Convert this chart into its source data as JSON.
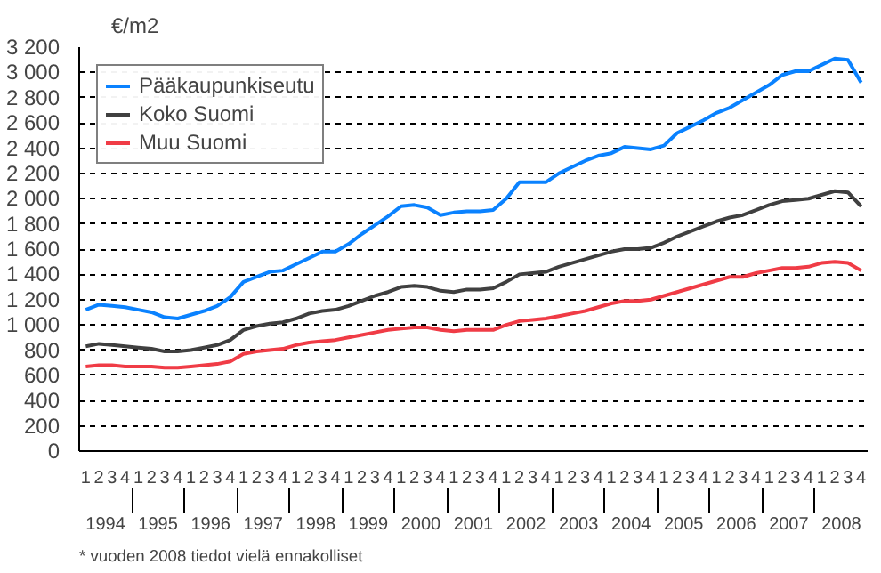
{
  "chart_data": {
    "type": "line",
    "ylabel": "€/m2",
    "categories": [
      "1",
      "2",
      "3",
      "4",
      "1",
      "2",
      "3",
      "4",
      "1",
      "2",
      "3",
      "4",
      "1",
      "2",
      "3",
      "4",
      "1",
      "2",
      "3",
      "4",
      "1",
      "2",
      "3",
      "4",
      "1",
      "2",
      "3",
      "4",
      "1",
      "2",
      "3",
      "4",
      "1",
      "2",
      "3",
      "4",
      "1",
      "2",
      "3",
      "4",
      "1",
      "2",
      "3",
      "4",
      "1",
      "2",
      "3",
      "4",
      "1",
      "2",
      "3",
      "4",
      "1",
      "2",
      "3",
      "4",
      "1",
      "2",
      "3",
      "4"
    ],
    "series": [
      {
        "name": "Pääkaupunkiseutu",
        "color": "#0a82ff",
        "values": [
          1120,
          1160,
          1150,
          1140,
          1120,
          1100,
          1060,
          1050,
          1080,
          1110,
          1150,
          1220,
          1340,
          1380,
          1420,
          1430,
          1480,
          1530,
          1580,
          1580,
          1640,
          1720,
          1790,
          1860,
          1940,
          1950,
          1930,
          1870,
          1890,
          1900,
          1900,
          1910,
          2000,
          2130,
          2130,
          2130,
          2200,
          2250,
          2300,
          2340,
          2360,
          2410,
          2400,
          2390,
          2420,
          2520,
          2570,
          2620,
          2680,
          2720,
          2780,
          2840,
          2900,
          2980,
          3010,
          3010,
          3060,
          3110,
          3100,
          2920
        ]
      },
      {
        "name": "Koko Suomi",
        "color": "#404040",
        "values": [
          830,
          850,
          840,
          830,
          820,
          810,
          790,
          790,
          800,
          820,
          840,
          880,
          960,
          990,
          1010,
          1020,
          1050,
          1090,
          1110,
          1120,
          1150,
          1190,
          1230,
          1260,
          1300,
          1310,
          1300,
          1270,
          1260,
          1280,
          1280,
          1290,
          1340,
          1400,
          1410,
          1420,
          1460,
          1490,
          1520,
          1550,
          1580,
          1600,
          1600,
          1610,
          1650,
          1700,
          1740,
          1780,
          1820,
          1850,
          1870,
          1910,
          1950,
          1980,
          1990,
          2000,
          2030,
          2060,
          2050,
          1940
        ]
      },
      {
        "name": "Muu Suomi",
        "color": "#f03c46",
        "values": [
          670,
          680,
          680,
          670,
          670,
          670,
          660,
          660,
          670,
          680,
          690,
          710,
          770,
          790,
          800,
          810,
          840,
          860,
          870,
          880,
          900,
          920,
          940,
          960,
          970,
          980,
          980,
          960,
          950,
          960,
          960,
          960,
          1000,
          1030,
          1040,
          1050,
          1070,
          1090,
          1110,
          1140,
          1170,
          1190,
          1190,
          1200,
          1230,
          1260,
          1290,
          1320,
          1350,
          1380,
          1380,
          1410,
          1430,
          1450,
          1450,
          1460,
          1490,
          1500,
          1490,
          1430
        ]
      }
    ],
    "ylim": [
      0,
      3200
    ],
    "yticks": [
      0,
      200,
      400,
      600,
      800,
      {
        "value": 1000,
        "label": "1 000"
      },
      {
        "value": 1200,
        "label": "1 200"
      },
      {
        "value": 1400,
        "label": "1 400"
      },
      {
        "value": 1600,
        "label": "1 600"
      },
      {
        "value": 1800,
        "label": "1 800"
      },
      {
        "value": 2000,
        "label": "2 000"
      },
      {
        "value": 2200,
        "label": "2 200"
      },
      {
        "value": 2400,
        "label": "2 400"
      },
      {
        "value": 2600,
        "label": "2 600"
      },
      {
        "value": 2800,
        "label": "2 800"
      },
      {
        "value": 3000,
        "label": "3 000"
      },
      {
        "value": 3200,
        "label": "3 200"
      }
    ],
    "grid": "y",
    "legend": "top left",
    "line_style": "solid",
    "marker": "none",
    "annotations": [
      "* vuoden 2008 tiedot vielä ennakolliset",
      "1994",
      "1995",
      "1996",
      "1997",
      "1998",
      "1999",
      "2000",
      "2001",
      "2002",
      "2003",
      "2004",
      "2005",
      "2006",
      "2007",
      "2008"
    ]
  }
}
